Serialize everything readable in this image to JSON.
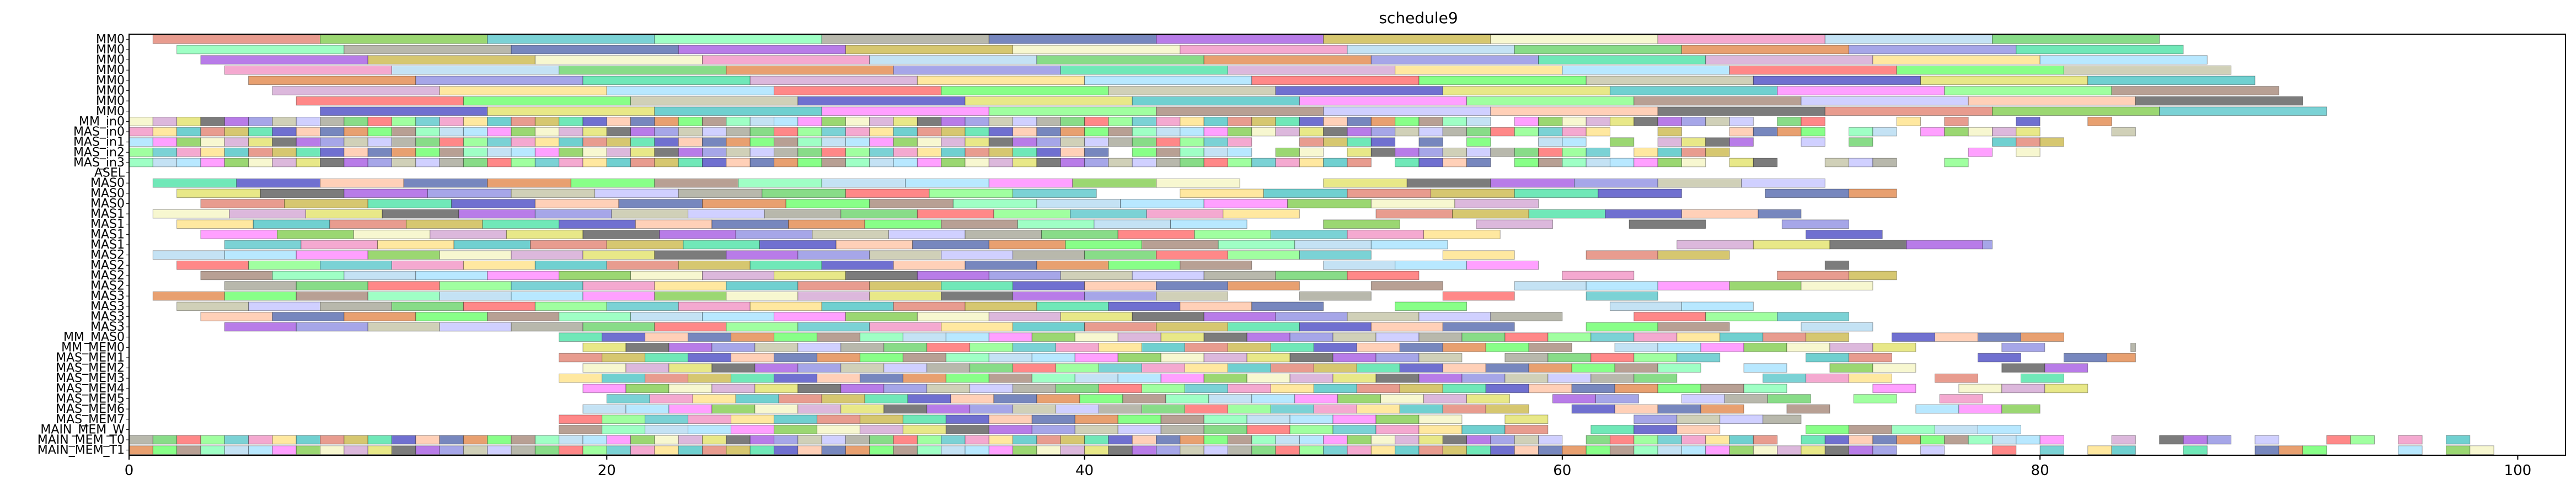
{
  "chart_data": {
    "type": "gantt",
    "title": "schedule9",
    "xlim": [
      0,
      102
    ],
    "xticks": [
      0,
      20,
      40,
      60,
      80,
      100
    ],
    "grid": false,
    "rows": [
      "MM0",
      "MM0",
      "MM0",
      "MM0",
      "MM0",
      "MM0",
      "MM0",
      "MM0",
      "MM_in0",
      "MAS_in0",
      "MAS_in1",
      "MAS_in2",
      "MAS_in3",
      "ASEL",
      "MAS0",
      "MAS0",
      "MAS0",
      "MAS1",
      "MAS1",
      "MAS1",
      "MAS1",
      "MAS2",
      "MAS2",
      "MAS2",
      "MAS2",
      "MAS3",
      "MAS3",
      "MAS3",
      "MAS3",
      "MM_MAS0",
      "MM_MEM0",
      "MAS_MEM1",
      "MAS_MEM2",
      "MAS_MEM3",
      "MAS_MEM4",
      "MAS_MEM5",
      "MAS_MEM6",
      "MAS_MEM7",
      "MAIN_MEM_W",
      "MAIN_MEM_T0",
      "MAIN_MEM_T1"
    ],
    "palette": [
      "#e07b6a",
      "#7ac943",
      "#4fc3c7",
      "#7fffb2",
      "#a0a090",
      "#4a5fa8",
      "#a050e0",
      "#c8b440",
      "#f4f4c0",
      "#f08cc0",
      "#b0d8f0",
      "#60d060",
      "#e08040",
      "#8888e0",
      "#40e0a0",
      "#d0a0d0",
      "#ffe080",
      "#a0e0ff",
      "#ff6060",
      "#60ff60",
      "#c0c0a0",
      "#4040c0",
      "#e0e060",
      "#40c0c0",
      "#ff80ff",
      "#80ff80",
      "#a08070",
      "#c0c0ff",
      "#ffc0a0",
      "#505050"
    ],
    "segments": [
      {
        "row": 0,
        "bars": [
          [
            1,
            8
          ],
          [
            8,
            15
          ],
          [
            15,
            22
          ],
          [
            22,
            29
          ],
          [
            29,
            36
          ],
          [
            36,
            43
          ],
          [
            43,
            50
          ],
          [
            50,
            57
          ],
          [
            57,
            64
          ],
          [
            64,
            71
          ],
          [
            71,
            78
          ],
          [
            78,
            85
          ]
        ]
      },
      {
        "row": 1,
        "bars": [
          [
            2,
            9
          ],
          [
            9,
            16
          ],
          [
            16,
            23
          ],
          [
            23,
            30
          ],
          [
            30,
            37
          ],
          [
            37,
            44
          ],
          [
            44,
            51
          ],
          [
            51,
            58
          ],
          [
            58,
            65
          ],
          [
            65,
            72
          ],
          [
            72,
            79
          ],
          [
            79,
            86
          ]
        ]
      },
      {
        "row": 2,
        "bars": [
          [
            3,
            10
          ],
          [
            10,
            17
          ],
          [
            17,
            24
          ],
          [
            24,
            31
          ],
          [
            31,
            38
          ],
          [
            38,
            45
          ],
          [
            45,
            52
          ],
          [
            52,
            59
          ],
          [
            59,
            66
          ],
          [
            66,
            73
          ],
          [
            73,
            80
          ],
          [
            80,
            87
          ]
        ]
      },
      {
        "row": 3,
        "bars": [
          [
            4,
            11
          ],
          [
            11,
            18
          ],
          [
            18,
            25
          ],
          [
            25,
            32
          ],
          [
            32,
            39
          ],
          [
            39,
            46
          ],
          [
            46,
            53
          ],
          [
            53,
            60
          ],
          [
            60,
            67
          ],
          [
            67,
            74
          ],
          [
            74,
            81
          ],
          [
            81,
            88
          ]
        ]
      },
      {
        "row": 4,
        "bars": [
          [
            5,
            12
          ],
          [
            12,
            19
          ],
          [
            19,
            26
          ],
          [
            26,
            33
          ],
          [
            33,
            40
          ],
          [
            40,
            47
          ],
          [
            47,
            54
          ],
          [
            54,
            61
          ],
          [
            61,
            68
          ],
          [
            68,
            75
          ],
          [
            75,
            82
          ],
          [
            82,
            89
          ]
        ]
      },
      {
        "row": 5,
        "bars": [
          [
            6,
            13
          ],
          [
            13,
            20
          ],
          [
            20,
            27
          ],
          [
            27,
            34
          ],
          [
            34,
            41
          ],
          [
            41,
            48
          ],
          [
            48,
            55
          ],
          [
            55,
            62
          ],
          [
            62,
            69
          ],
          [
            69,
            76
          ],
          [
            76,
            83
          ],
          [
            83,
            90
          ]
        ]
      },
      {
        "row": 6,
        "bars": [
          [
            7,
            14
          ],
          [
            14,
            21
          ],
          [
            21,
            28
          ],
          [
            28,
            35
          ],
          [
            35,
            42
          ],
          [
            42,
            49
          ],
          [
            49,
            56
          ],
          [
            56,
            63
          ],
          [
            63,
            70
          ],
          [
            70,
            77
          ],
          [
            77,
            84
          ],
          [
            84,
            91
          ]
        ]
      },
      {
        "row": 7,
        "bars": [
          [
            8,
            15
          ],
          [
            15,
            22
          ],
          [
            22,
            29
          ],
          [
            29,
            36
          ],
          [
            36,
            43
          ],
          [
            43,
            50
          ],
          [
            50,
            57
          ],
          [
            57,
            64
          ],
          [
            64,
            71
          ],
          [
            71,
            78
          ],
          [
            78,
            85
          ],
          [
            85,
            92
          ]
        ]
      },
      {
        "row": 8,
        "dense": [
          0,
          84,
          1,
          0
        ]
      },
      {
        "row": 9,
        "dense": [
          0,
          84,
          1,
          0
        ]
      },
      {
        "row": 10,
        "dense": [
          0,
          82,
          1,
          1
        ]
      },
      {
        "row": 11,
        "dense": [
          0,
          80,
          1,
          2
        ]
      },
      {
        "row": 12,
        "dense": [
          0,
          78,
          1,
          3
        ]
      },
      {
        "row": 14,
        "dense": [
          1,
          73,
          3.5,
          0
        ]
      },
      {
        "row": 15,
        "dense": [
          2,
          74,
          3.5,
          1
        ]
      },
      {
        "row": 16,
        "dense": [
          3,
          74,
          3.5,
          2
        ]
      },
      {
        "row": 17,
        "dense": [
          1,
          70,
          3.2,
          3
        ]
      },
      {
        "row": 18,
        "dense": [
          2,
          72,
          3.2,
          4
        ]
      },
      {
        "row": 19,
        "dense": [
          3,
          75,
          3.2,
          5
        ]
      },
      {
        "row": 20,
        "dense": [
          4,
          78,
          3.2,
          6
        ]
      },
      {
        "row": 21,
        "dense": [
          1,
          70,
          3.0,
          7
        ]
      },
      {
        "row": 22,
        "dense": [
          2,
          72,
          3.0,
          8
        ]
      },
      {
        "row": 23,
        "dense": [
          3,
          74,
          3.0,
          9
        ]
      },
      {
        "row": 24,
        "dense": [
          4,
          76,
          3.0,
          10
        ]
      },
      {
        "row": 25,
        "dense": [
          1,
          66,
          3.0,
          11
        ]
      },
      {
        "row": 26,
        "dense": [
          2,
          70,
          3.0,
          12
        ]
      },
      {
        "row": 27,
        "dense": [
          3,
          76,
          3.0,
          13
        ]
      },
      {
        "row": 28,
        "dense": [
          4,
          78,
          3.0,
          14
        ]
      },
      {
        "row": 29,
        "dense": [
          18,
          84,
          1.8,
          15
        ]
      },
      {
        "row": 30,
        "dense": [
          19,
          84,
          1.8,
          16
        ]
      },
      {
        "row": 31,
        "dense": [
          18,
          84,
          1.8,
          17
        ]
      },
      {
        "row": 32,
        "dense": [
          19,
          84,
          1.8,
          18
        ]
      },
      {
        "row": 33,
        "dense": [
          18,
          84,
          1.8,
          19
        ]
      },
      {
        "row": 34,
        "dense": [
          19,
          82,
          1.8,
          20
        ]
      },
      {
        "row": 35,
        "dense": [
          20,
          82,
          1.8,
          21
        ]
      },
      {
        "row": 36,
        "dense": [
          19,
          80,
          1.8,
          22
        ]
      },
      {
        "row": 37,
        "dense": [
          18,
          70,
          1.8,
          23
        ]
      },
      {
        "row": 38,
        "dense": [
          18,
          80,
          1.8,
          24
        ]
      },
      {
        "row": 39,
        "dense": [
          0,
          102,
          1,
          25
        ]
      },
      {
        "row": 40,
        "dense": [
          0,
          102,
          1,
          26
        ]
      }
    ]
  }
}
